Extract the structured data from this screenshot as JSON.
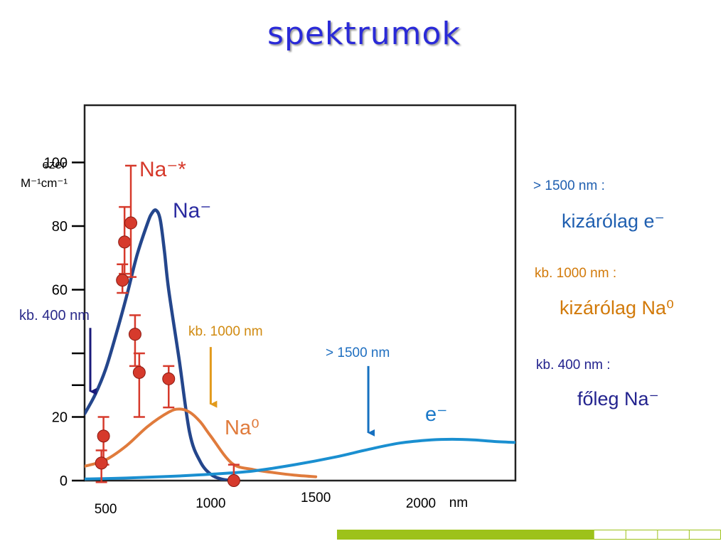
{
  "title": "spektrumok",
  "colors": {
    "title": "#2a2ad8",
    "na_minus": "#24468c",
    "na_zero": "#e07b3c",
    "electron": "#1a8fd0",
    "na_star": "#d63a2c",
    "arrow_navy": "#1a1a7a",
    "arrow_orange": "#e29a1c",
    "arrow_blue": "#1570c0",
    "footer_green": "#9dc21a"
  },
  "chart_data": {
    "type": "line",
    "x_unit": "nm",
    "y_axis": {
      "unit_line1": "ezer",
      "unit_line2": "M⁻¹cm⁻¹",
      "ticks": [
        "100",
        "80",
        "60",
        "",
        "",
        "20",
        "0"
      ],
      "tick_values": [
        100,
        80,
        60,
        40,
        30,
        20,
        0
      ]
    },
    "x_axis": {
      "ticks": [
        "500",
        "1000",
        "1500",
        "2000"
      ],
      "tick_values": [
        500,
        1000,
        1500,
        2000
      ],
      "unit_label": "nm"
    },
    "xlim": [
      400,
      2450
    ],
    "ylim": [
      0,
      118
    ],
    "series": [
      {
        "name": "Na⁻",
        "color": "#24468c",
        "x": [
          400,
          450,
          500,
          550,
          600,
          650,
          700,
          720,
          740,
          760,
          780,
          800,
          850,
          900,
          950,
          1000,
          1050,
          1100
        ],
        "y": [
          21,
          27,
          35,
          46,
          58,
          71,
          81,
          84,
          85,
          82,
          72,
          60,
          38,
          15,
          6,
          2,
          0.5,
          0
        ]
      },
      {
        "name": "Na⁰",
        "color": "#e07b3c",
        "x": [
          400,
          500,
          600,
          700,
          800,
          850,
          900,
          950,
          1000,
          1100,
          1200,
          1300,
          1400,
          1500
        ],
        "y": [
          4.5,
          6.5,
          11,
          17,
          21.5,
          22.5,
          21.5,
          18.5,
          14,
          5.5,
          3.5,
          2.5,
          1.7,
          1.2
        ]
      },
      {
        "name": "e⁻",
        "color": "#1a8fd0",
        "x": [
          400,
          600,
          800,
          1000,
          1200,
          1400,
          1600,
          1750,
          1900,
          2050,
          2150,
          2250,
          2350,
          2450
        ],
        "y": [
          0.5,
          0.8,
          1.3,
          2,
          3,
          5,
          7.5,
          9.8,
          11.8,
          12.8,
          13,
          12.8,
          12.3,
          12
        ]
      }
    ],
    "points": {
      "name": "Na⁻*",
      "color": "#d63a2c",
      "x": [
        590,
        620,
        580,
        640,
        660,
        800,
        490,
        480,
        1110
      ],
      "y": [
        75,
        81,
        63,
        46,
        34,
        32,
        14,
        5.5,
        0
      ],
      "err_low": [
        10,
        17,
        4,
        10,
        14,
        9,
        9,
        6,
        0
      ],
      "err_high": [
        11,
        18,
        5,
        6,
        6,
        4,
        6,
        4,
        5
      ]
    },
    "arrows": [
      {
        "label": "kb. 400 nm",
        "x": 430,
        "y_from": 48,
        "y_to": 28
      },
      {
        "label": "kb. 1000 nm",
        "x": 1000,
        "y_from": 42,
        "y_to": 24
      },
      {
        "label": "> 1500 nm",
        "x": 1750,
        "y_from": 36,
        "y_to": 15
      }
    ],
    "labels": {
      "na_star": "Na⁻*",
      "na_minus": "Na⁻",
      "na_zero": "Na⁰",
      "electron": "e⁻"
    }
  },
  "side_notes": [
    {
      "range": "> 1500 nm :",
      "species": "kizárólag e⁻"
    },
    {
      "range": "kb. 1000 nm :",
      "species": "kizárólag Na⁰"
    },
    {
      "range": "kb. 400 nm :",
      "species": "főleg Na⁻"
    }
  ],
  "footer": {
    "green_fraction": 0.67,
    "segments": 4
  }
}
